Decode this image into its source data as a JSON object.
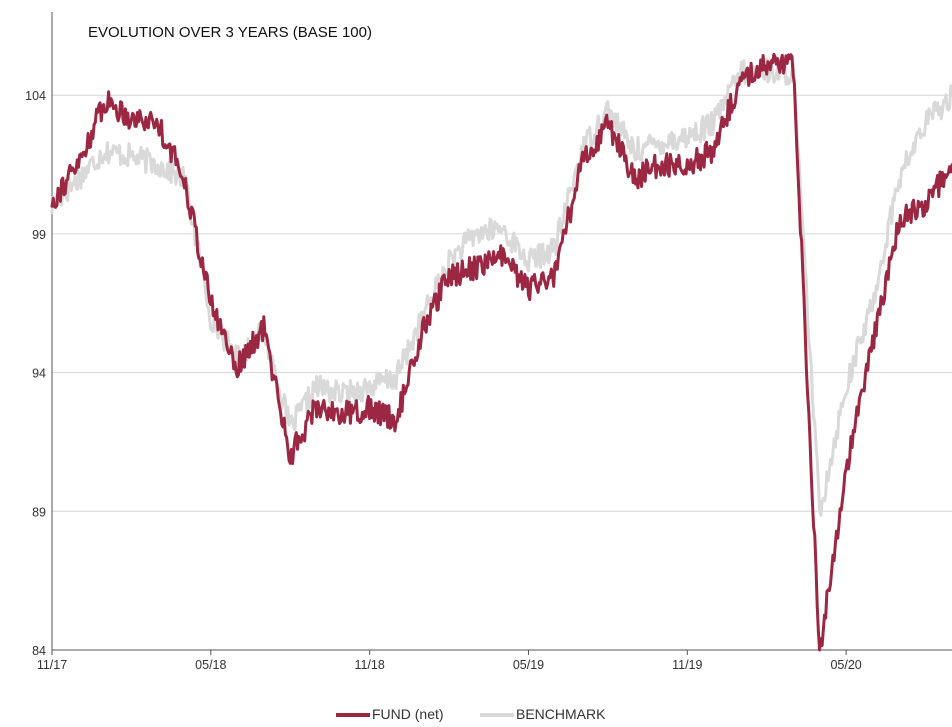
{
  "chart_data": {
    "type": "line",
    "title": "EVOLUTION OVER 3 YEARS (BASE 100)",
    "xlabel": "",
    "ylabel": "",
    "ylim": [
      84,
      107
    ],
    "y_ticks": [
      84,
      89,
      94,
      99,
      104
    ],
    "x_ticks": [
      "11/17",
      "05/18",
      "11/18",
      "05/19",
      "11/19",
      "05/20"
    ],
    "x_domain": [
      "2017-11",
      "2020-09"
    ],
    "grid": true,
    "legend_position": "bottom",
    "colors": {
      "fund": "#9b2743",
      "benchmark": "#d9d9d9"
    },
    "series": [
      {
        "name": "FUND (net)",
        "color": "#9b2743",
        "x": [
          "2017-11",
          "2017-12",
          "2018-01",
          "2018-02",
          "2018-03",
          "2018-04",
          "2018-05",
          "2018-06",
          "2018-07",
          "2018-08",
          "2018-09",
          "2018-10",
          "2018-11",
          "2018-12",
          "2019-01",
          "2019-02",
          "2019-03",
          "2019-04",
          "2019-05",
          "2019-06",
          "2019-07",
          "2019-08",
          "2019-09",
          "2019-10",
          "2019-11",
          "2019-12",
          "2020-01",
          "2020-02",
          "2020-03",
          "2020-04",
          "2020-05",
          "2020-06",
          "2020-07",
          "2020-08",
          "2020-09"
        ],
        "values": [
          100.2,
          101.5,
          103.8,
          103.2,
          103.0,
          101.0,
          96.5,
          94.2,
          95.6,
          91.0,
          92.8,
          92.5,
          92.7,
          92.3,
          95.5,
          97.5,
          97.8,
          98.2,
          97.0,
          97.5,
          101.5,
          103.0,
          101.0,
          101.5,
          101.5,
          102.0,
          104.5,
          105.2,
          105.0,
          84.0,
          90.5,
          95.0,
          99.5,
          100.0,
          101.5
        ]
      },
      {
        "name": "BENCHMARK",
        "color": "#d9d9d9",
        "x": [
          "2017-11",
          "2017-12",
          "2018-01",
          "2018-02",
          "2018-03",
          "2018-04",
          "2018-05",
          "2018-06",
          "2018-07",
          "2018-08",
          "2018-09",
          "2018-10",
          "2018-11",
          "2018-12",
          "2019-01",
          "2019-02",
          "2019-03",
          "2019-04",
          "2019-05",
          "2019-06",
          "2019-07",
          "2019-08",
          "2019-09",
          "2019-10",
          "2019-11",
          "2019-12",
          "2020-01",
          "2020-02",
          "2020-03",
          "2020-04",
          "2020-05",
          "2020-06",
          "2020-07",
          "2020-08",
          "2020-09"
        ],
        "values": [
          100.0,
          101.0,
          102.0,
          101.8,
          101.5,
          101.0,
          96.0,
          94.5,
          95.5,
          92.0,
          93.5,
          93.2,
          93.5,
          93.8,
          96.0,
          98.0,
          99.0,
          99.2,
          98.0,
          98.5,
          102.0,
          103.5,
          102.0,
          102.3,
          102.5,
          103.0,
          104.8,
          104.9,
          104.8,
          89.0,
          93.5,
          96.5,
          101.0,
          103.0,
          104.0
        ]
      }
    ]
  }
}
